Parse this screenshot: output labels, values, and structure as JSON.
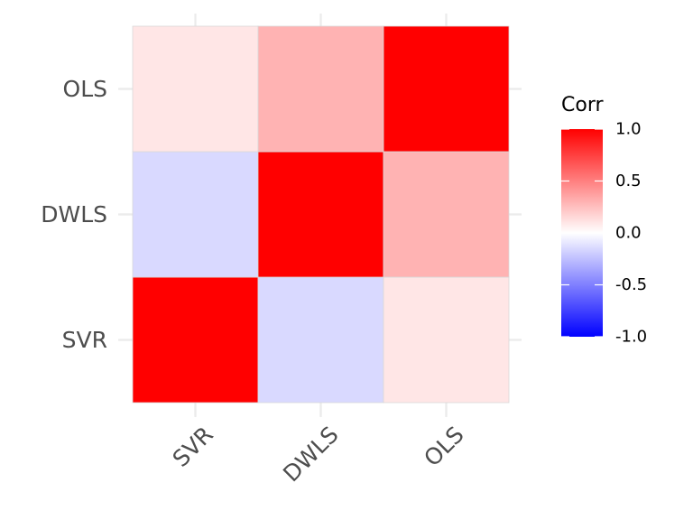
{
  "chart_data": {
    "type": "heatmap",
    "x_categories": [
      "SVR",
      "DWLS",
      "OLS"
    ],
    "y_categories": [
      "SVR",
      "DWLS",
      "OLS"
    ],
    "values": [
      [
        1.0,
        -0.15,
        0.1
      ],
      [
        -0.15,
        1.0,
        0.3
      ],
      [
        0.1,
        0.3,
        1.0
      ]
    ],
    "legend": {
      "title": "Corr",
      "ticks": [
        1.0,
        0.5,
        0.0,
        -0.5,
        -1.0
      ],
      "tick_labels": [
        "1.0",
        "0.5",
        "0.0",
        "-0.5",
        "-1.0"
      ],
      "placement": "right"
    },
    "color_scale": {
      "low": "#0000ff",
      "mid": "#ffffff",
      "high": "#ff0000",
      "limits": [
        -1,
        1
      ]
    },
    "grid": true,
    "title": "",
    "xlabel": "",
    "ylabel": ""
  }
}
